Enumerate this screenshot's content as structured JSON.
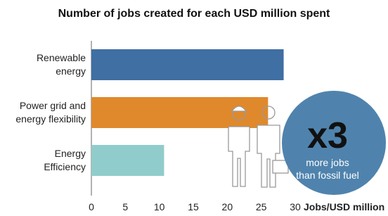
{
  "chart_data": {
    "type": "hbar",
    "title": "Number of jobs created for each USD million spent",
    "categories": [
      "Renewable\nenergy",
      "Power grid and\nenergy flexibility",
      "Energy\nEfficiency"
    ],
    "series": [
      {
        "values": [
          28.3,
          26,
          10.7
        ],
        "colors": [
          "#3f6fa3",
          "#e0892c",
          "#90cccb"
        ]
      }
    ],
    "x_label": "Jobs/USD million",
    "xlim": [
      0,
      30
    ],
    "xticks": [
      0,
      5,
      10,
      15,
      20,
      25,
      30
    ],
    "grid": false,
    "annotations": [
      "x3",
      "more jobs",
      "than fossil fuel"
    ],
    "annotation_color": "#4f83ad"
  }
}
